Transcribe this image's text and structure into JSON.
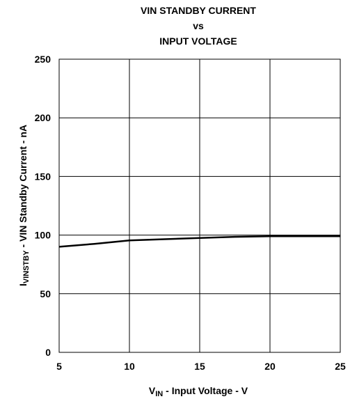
{
  "chart_data": {
    "type": "line",
    "title_lines": [
      "VIN STANDBY CURRENT",
      "vs",
      "INPUT VOLTAGE"
    ],
    "xlabel": {
      "main": "V",
      "sub": "IN",
      "rest": " - Input Voltage - V"
    },
    "ylabel": {
      "main": "I",
      "sub": "VINSTBY",
      "rest": " - VIN Standby Current - nA"
    },
    "xlim": [
      5,
      25
    ],
    "ylim": [
      0,
      250
    ],
    "x_ticks": [
      5,
      10,
      15,
      20,
      25
    ],
    "y_ticks": [
      0,
      50,
      100,
      150,
      200,
      250
    ],
    "grid": true,
    "series": [
      {
        "x": [
          5,
          7.5,
          10,
          12.5,
          15,
          17.5,
          20,
          22.5,
          25
        ],
        "values": [
          90,
          92.5,
          95.5,
          96.5,
          97.5,
          98.5,
          99,
          99,
          99
        ],
        "color": "#000000"
      }
    ]
  }
}
